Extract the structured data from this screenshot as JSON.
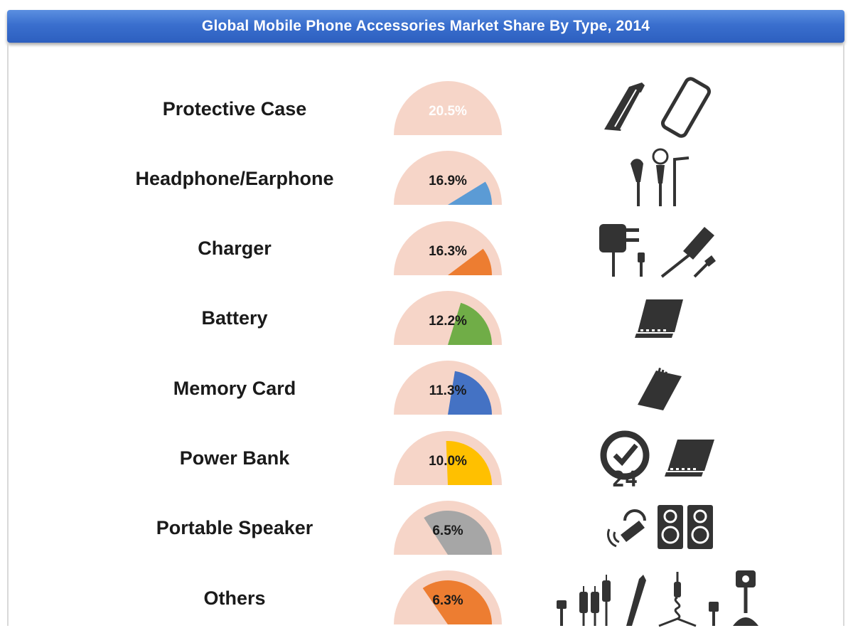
{
  "title": "Global Mobile Phone Accessories Market Share By Type, 2014",
  "colors": {
    "title_bar": "#3a6fce",
    "gauge_background": "#f6d5c8",
    "icon": "#333333"
  },
  "chart_data": {
    "type": "gauge",
    "title": "Global Mobile Phone Accessories Market Share By Type, 2014",
    "unit": "%",
    "categories": [
      "Protective Case",
      "Headphone/Earphone",
      "Charger",
      "Battery",
      "Memory Card",
      "Power Bank",
      "Portable Speaker",
      "Others"
    ],
    "values": [
      20.5,
      16.9,
      16.3,
      12.2,
      11.3,
      10.0,
      6.5,
      6.3
    ],
    "labels": [
      "20.5%",
      "16.9%",
      "16.3%",
      "12.2%",
      "11.3%",
      "10.0%",
      "6.5%",
      "6.3%"
    ],
    "colors": [
      "#7b2fa6",
      "#5b9bd5",
      "#ed7d31",
      "#70ad47",
      "#4472c4",
      "#ffc000",
      "#a6a6a6",
      "#ed7d31"
    ],
    "icons": [
      [
        "phone-case-icon",
        "phone-outline-icon"
      ],
      [
        "earphone-icon"
      ],
      [
        "wall-charger-icon",
        "car-charger-icon"
      ],
      [
        "battery-icon"
      ],
      [
        "memory-card-icon"
      ],
      [
        "clock-24-icon",
        "power-bank-icon"
      ],
      [
        "bluetooth-headset-icon",
        "speaker-icon"
      ],
      [
        "cable-icon",
        "audio-plugs-icon",
        "stylus-icon",
        "aux-cable-icon",
        "usb-plug-icon",
        "car-mount-icon"
      ]
    ]
  }
}
